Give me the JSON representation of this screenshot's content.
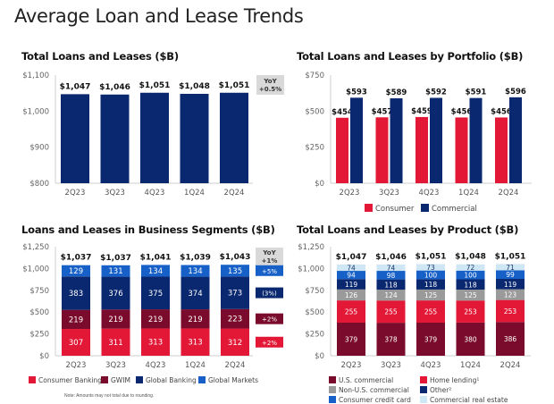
{
  "page": {
    "title": "Average Loan and Lease Trends"
  },
  "note": "Note: Amounts may not total due to rounding.",
  "colors": {
    "navy": "#0a2870",
    "red": "#e31837",
    "maroon": "#7a0b2c",
    "blue": "#1660c8",
    "gray": "#9a9a9a",
    "light_blue": "#cfe6f5",
    "yoy_bg": "#d9d9d9"
  },
  "chart_data": [
    {
      "id": "total",
      "type": "bar",
      "title": "Total Loans and Leases ($B)",
      "categories": [
        "2Q23",
        "3Q23",
        "4Q23",
        "1Q24",
        "2Q24"
      ],
      "values": [
        1047,
        1046,
        1051,
        1048,
        1051
      ],
      "value_labels": [
        "$1,047",
        "$1,046",
        "$1,051",
        "$1,048",
        "$1,051"
      ],
      "ylim": [
        800,
        1100
      ],
      "yticks": [
        800,
        900,
        1000,
        1100
      ],
      "ytick_labels": [
        "$800",
        "$900",
        "$1,000",
        "$1,100"
      ],
      "yoy": {
        "label": "YoY",
        "value": "+0.5%"
      },
      "color": "navy"
    },
    {
      "id": "portfolio",
      "type": "bar",
      "title": "Total Loans and Leases by Portfolio ($B)",
      "categories": [
        "2Q23",
        "3Q23",
        "4Q23",
        "1Q24",
        "2Q24"
      ],
      "series": [
        {
          "name": "Consumer",
          "color": "red",
          "values": [
            454,
            457,
            459,
            456,
            456
          ],
          "labels": [
            "$454",
            "$457",
            "$459",
            "$456",
            "$456"
          ]
        },
        {
          "name": "Commercial",
          "color": "navy",
          "values": [
            593,
            589,
            592,
            591,
            596
          ],
          "labels": [
            "$593",
            "$589",
            "$592",
            "$591",
            "$596"
          ]
        }
      ],
      "ylim": [
        0,
        750
      ],
      "yticks": [
        0,
        250,
        500,
        750
      ],
      "ytick_labels": [
        "$0",
        "$250",
        "$500",
        "$750"
      ],
      "legend": "bottom"
    },
    {
      "id": "segments",
      "type": "bar",
      "stacked": true,
      "title": "Loans and Leases in Business Segments ($B)",
      "categories": [
        "2Q23",
        "3Q23",
        "4Q23",
        "1Q24",
        "2Q24"
      ],
      "series": [
        {
          "name": "Consumer Banking",
          "color": "red",
          "values": [
            307,
            311,
            313,
            313,
            312
          ],
          "yoy": "+2%"
        },
        {
          "name": "GWIM",
          "color": "maroon",
          "values": [
            219,
            219,
            219,
            219,
            223
          ],
          "yoy": "+2%"
        },
        {
          "name": "Global Banking",
          "color": "navy",
          "values": [
            383,
            376,
            375,
            374,
            373
          ],
          "yoy": "(3%)"
        },
        {
          "name": "Global Markets",
          "color": "blue",
          "values": [
            129,
            131,
            134,
            134,
            135
          ],
          "yoy": "+5%"
        }
      ],
      "totals": [
        "$1,037",
        "$1,037",
        "$1,041",
        "$1,039",
        "$1,043"
      ],
      "ylim": [
        0,
        1250
      ],
      "yticks": [
        0,
        250,
        500,
        750,
        1000,
        1250
      ],
      "ytick_labels": [
        "$0",
        "$250",
        "$500",
        "$750",
        "$1,000",
        "$1,250"
      ],
      "yoy": {
        "label": "YoY",
        "value": "+1%"
      },
      "legend": "bottom"
    },
    {
      "id": "product",
      "type": "bar",
      "stacked": true,
      "title": "Total Loans and Leases by Product ($B)",
      "categories": [
        "2Q23",
        "3Q23",
        "4Q23",
        "1Q24",
        "2Q24"
      ],
      "series": [
        {
          "name": "U.S. commercial",
          "color": "maroon",
          "values": [
            379,
            378,
            379,
            380,
            386
          ]
        },
        {
          "name": "Home lending¹",
          "color": "red",
          "values": [
            255,
            255,
            255,
            253,
            253
          ]
        },
        {
          "name": "Non-U.S. commercial",
          "color": "gray",
          "values": [
            126,
            124,
            125,
            125,
            123
          ]
        },
        {
          "name": "Other²",
          "color": "navy",
          "values": [
            119,
            118,
            118,
            118,
            119
          ]
        },
        {
          "name": "Consumer credit card",
          "color": "blue",
          "values": [
            94,
            98,
            100,
            100,
            99
          ]
        },
        {
          "name": "Commercial real estate",
          "color": "light_blue",
          "values": [
            74,
            74,
            73,
            72,
            71
          ]
        }
      ],
      "totals": [
        "$1,047",
        "$1,046",
        "$1,051",
        "$1,048",
        "$1,051"
      ],
      "ylim": [
        0,
        1250
      ],
      "yticks": [
        0,
        250,
        500,
        750,
        1000,
        1250
      ],
      "ytick_labels": [
        "$0",
        "$250",
        "$500",
        "$750",
        "$1,000",
        "$1,250"
      ],
      "legend": "bottom",
      "legend_order": [
        "U.S. commercial",
        "Home lending¹",
        "Non-U.S. commercial",
        "Other²",
        "Consumer credit card",
        "Commercial real estate"
      ]
    }
  ]
}
